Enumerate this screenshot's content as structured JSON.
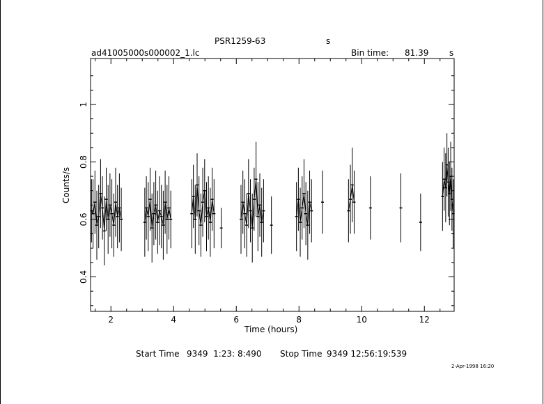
{
  "header": {
    "object": "PSR1259-63",
    "object_unit": "s",
    "file": "ad41005000s000002_1.lc",
    "bin_label": "Bin time:",
    "bin_value": "81.39",
    "bin_unit": "s"
  },
  "footer": {
    "start_label": "Start Time",
    "start_value": "9349  1:23: 8:490",
    "stop_label": "Stop Time",
    "stop_value": "9349 12:56:19:539",
    "date_stamp": "2-Apr-1998 16:20"
  },
  "chart_data": {
    "type": "line",
    "title": "PSR1259-63",
    "xlabel": "Time (hours)",
    "ylabel": "Counts/s",
    "xlim": [
      1.35,
      12.95
    ],
    "ylim": [
      0.28,
      1.16
    ],
    "x_ticks": [
      2,
      4,
      6,
      8,
      10,
      12
    ],
    "y_ticks": [
      0.4,
      0.6,
      0.8,
      1
    ],
    "x_tick_labels": [
      "2",
      "4",
      "6",
      "8",
      "10",
      "12"
    ],
    "y_tick_labels": [
      "0.4",
      "0.6",
      "0.8",
      "1"
    ],
    "grid": false,
    "segments": [
      {
        "x": [
          1.38,
          1.43,
          1.49,
          1.55,
          1.61,
          1.67,
          1.73,
          1.79,
          1.85,
          1.91,
          1.97,
          2.03,
          2.09,
          2.15,
          2.21,
          2.27,
          2.33
        ],
        "y": [
          0.63,
          0.62,
          0.66,
          0.58,
          0.61,
          0.69,
          0.64,
          0.56,
          0.67,
          0.6,
          0.65,
          0.62,
          0.58,
          0.66,
          0.61,
          0.64,
          0.6
        ],
        "err": [
          0.11,
          0.12,
          0.11,
          0.12,
          0.11,
          0.12,
          0.11,
          0.12,
          0.11,
          0.12,
          0.11,
          0.12,
          0.11,
          0.12,
          0.11,
          0.12,
          0.11
        ]
      },
      {
        "x": [
          3.08,
          3.13,
          3.19,
          3.25,
          3.31,
          3.37,
          3.43,
          3.49,
          3.55,
          3.61,
          3.67,
          3.73,
          3.79,
          3.85,
          3.91
        ],
        "y": [
          0.59,
          0.64,
          0.61,
          0.67,
          0.57,
          0.62,
          0.65,
          0.59,
          0.63,
          0.61,
          0.58,
          0.66,
          0.6,
          0.64,
          0.6
        ],
        "err": [
          0.12,
          0.11,
          0.12,
          0.11,
          0.12,
          0.11,
          0.12,
          0.11,
          0.12,
          0.11,
          0.12,
          0.11,
          0.12,
          0.11,
          0.1
        ]
      },
      {
        "x": [
          4.58,
          4.63,
          4.69,
          4.75,
          4.81,
          4.87,
          4.93,
          4.99,
          5.05,
          5.11,
          5.17,
          5.23,
          5.29,
          5.52
        ],
        "y": [
          0.62,
          0.68,
          0.6,
          0.72,
          0.63,
          0.58,
          0.66,
          0.7,
          0.61,
          0.64,
          0.59,
          0.67,
          0.62,
          0.57
        ],
        "err": [
          0.12,
          0.11,
          0.12,
          0.11,
          0.12,
          0.11,
          0.12,
          0.11,
          0.12,
          0.11,
          0.12,
          0.11,
          0.12,
          0.07
        ]
      },
      {
        "x": [
          6.15,
          6.21,
          6.27,
          6.33,
          6.39,
          6.45,
          6.51,
          6.57,
          6.63,
          6.69,
          6.75,
          6.81,
          6.87,
          7.12
        ],
        "y": [
          0.6,
          0.66,
          0.62,
          0.58,
          0.69,
          0.63,
          0.57,
          0.67,
          0.74,
          0.61,
          0.65,
          0.59,
          0.63,
          0.58
        ],
        "err": [
          0.12,
          0.11,
          0.12,
          0.11,
          0.12,
          0.11,
          0.12,
          0.11,
          0.13,
          0.12,
          0.11,
          0.12,
          0.11,
          0.1
        ]
      },
      {
        "x": [
          7.92,
          7.98,
          8.04,
          8.1,
          8.16,
          8.22,
          8.28,
          8.34,
          8.4,
          8.75
        ],
        "y": [
          0.61,
          0.67,
          0.59,
          0.64,
          0.69,
          0.62,
          0.58,
          0.66,
          0.63,
          0.66
        ],
        "err": [
          0.12,
          0.11,
          0.12,
          0.11,
          0.12,
          0.11,
          0.12,
          0.11,
          0.11,
          0.11
        ]
      },
      {
        "x": [
          9.58,
          9.64,
          9.7,
          9.76,
          10.28
        ],
        "y": [
          0.63,
          0.67,
          0.72,
          0.66,
          0.64
        ],
        "err": [
          0.11,
          0.12,
          0.13,
          0.11,
          0.11
        ]
      },
      {
        "x": [
          11.25,
          11.88
        ],
        "y": [
          0.64,
          0.59
        ],
        "err": [
          0.12,
          0.1
        ]
      },
      {
        "x": [
          12.58,
          12.63,
          12.68,
          12.72,
          12.76,
          12.8,
          12.84,
          12.88,
          12.92
        ],
        "y": [
          0.68,
          0.74,
          0.71,
          0.79,
          0.73,
          0.69,
          0.75,
          0.67,
          0.62
        ],
        "err": [
          0.12,
          0.11,
          0.12,
          0.11,
          0.12,
          0.11,
          0.12,
          0.11,
          0.12
        ]
      }
    ]
  }
}
